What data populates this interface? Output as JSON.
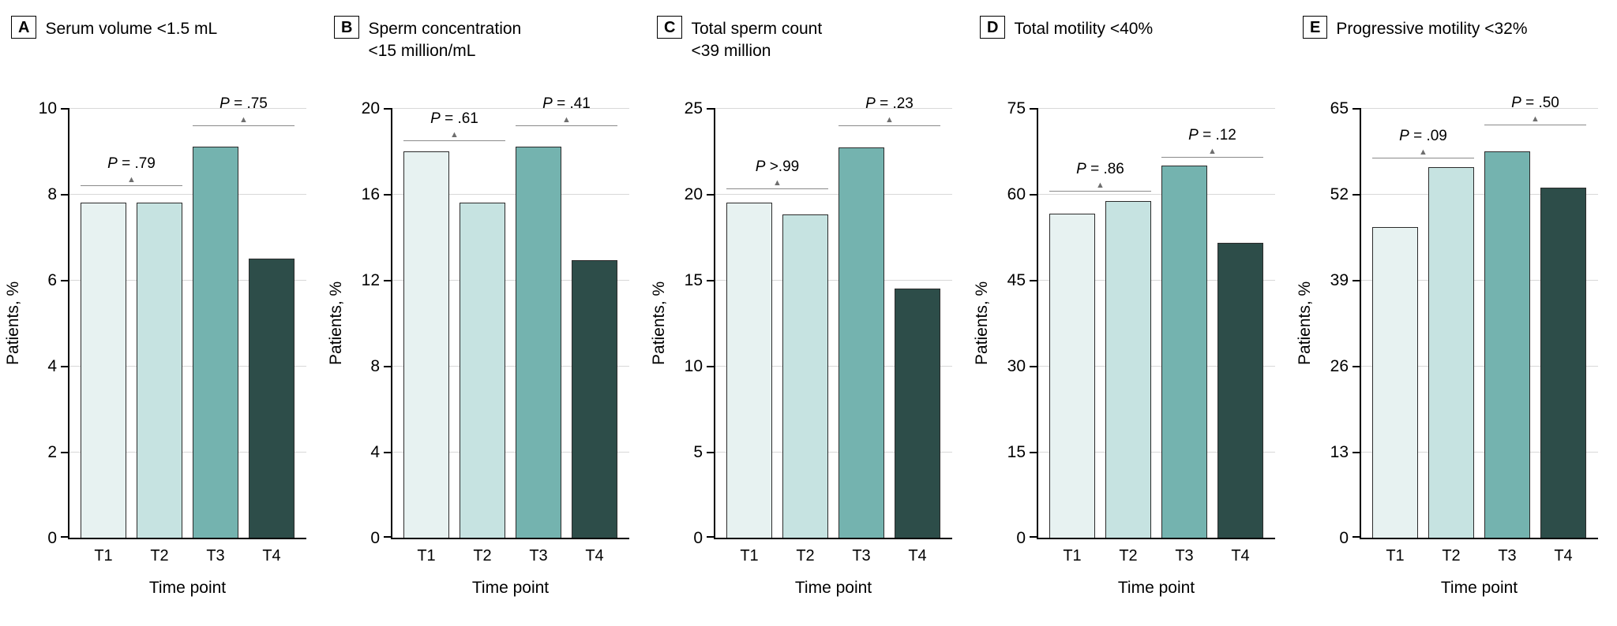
{
  "figure": {
    "y_axis_label": "Patients, %",
    "x_axis_label": "Time point",
    "categories": [
      "T1",
      "T2",
      "T3",
      "T4"
    ],
    "bar_colors": [
      "#e7f2f1",
      "#c6e3e1",
      "#74b3af",
      "#2d4d49"
    ],
    "bar_border_color": "#2b2b2b",
    "gridline_color": "#d8d8d8",
    "bracket_line_color": "#8a8a8a"
  },
  "chart_data": [
    {
      "type": "bar",
      "panel": "A",
      "title": "Serum volume <1.5 mL",
      "categories": [
        "T1",
        "T2",
        "T3",
        "T4"
      ],
      "values": [
        7.8,
        7.8,
        9.1,
        6.5
      ],
      "xlabel": "Time point",
      "ylabel": "Patients, %",
      "ylim": [
        0,
        10
      ],
      "yticks": [
        0,
        2,
        4,
        6,
        8,
        10
      ],
      "grid": true,
      "brackets": [
        {
          "pair": [
            0,
            1
          ],
          "label": "P = .79",
          "y": 8.2
        },
        {
          "pair": [
            2,
            3
          ],
          "label": "P = .75",
          "y": 9.6
        }
      ]
    },
    {
      "type": "bar",
      "panel": "B",
      "title": "Sperm concentration\n<15 million/mL",
      "categories": [
        "T1",
        "T2",
        "T3",
        "T4"
      ],
      "values": [
        18.0,
        15.6,
        18.2,
        12.9
      ],
      "xlabel": "Time point",
      "ylabel": "Patients, %",
      "ylim": [
        0,
        20
      ],
      "yticks": [
        0,
        4,
        8,
        12,
        16,
        20
      ],
      "grid": true,
      "brackets": [
        {
          "pair": [
            0,
            1
          ],
          "label": "P = .61",
          "y": 18.5
        },
        {
          "pair": [
            2,
            3
          ],
          "label": "P = .41",
          "y": 19.2
        }
      ]
    },
    {
      "type": "bar",
      "panel": "C",
      "title": "Total sperm count\n<39 million",
      "categories": [
        "T1",
        "T2",
        "T3",
        "T4"
      ],
      "values": [
        19.5,
        18.8,
        22.7,
        14.5
      ],
      "xlabel": "Time point",
      "ylabel": "Patients, %",
      "ylim": [
        0,
        25
      ],
      "yticks": [
        0,
        5,
        10,
        15,
        20,
        25
      ],
      "grid": true,
      "brackets": [
        {
          "pair": [
            0,
            1
          ],
          "label": "P >.99",
          "y": 20.3
        },
        {
          "pair": [
            2,
            3
          ],
          "label": "P = .23",
          "y": 24.0
        }
      ]
    },
    {
      "type": "bar",
      "panel": "D",
      "title": "Total motility <40%",
      "categories": [
        "T1",
        "T2",
        "T3",
        "T4"
      ],
      "values": [
        56.5,
        58.7,
        65.0,
        51.5
      ],
      "xlabel": "Time point",
      "ylabel": "Patients, %",
      "ylim": [
        0,
        75
      ],
      "yticks": [
        0,
        15,
        30,
        45,
        60,
        75
      ],
      "grid": true,
      "brackets": [
        {
          "pair": [
            0,
            1
          ],
          "label": "P = .86",
          "y": 60.5
        },
        {
          "pair": [
            2,
            3
          ],
          "label": "P = .12",
          "y": 66.5
        }
      ]
    },
    {
      "type": "bar",
      "panel": "E",
      "title": "Progressive motility <32%",
      "categories": [
        "T1",
        "T2",
        "T3",
        "T4"
      ],
      "values": [
        47.0,
        56.0,
        58.5,
        53.0
      ],
      "xlabel": "Time point",
      "ylabel": "Patients, %",
      "ylim": [
        0,
        65
      ],
      "yticks": [
        0,
        13,
        26,
        39,
        52,
        65
      ],
      "grid": true,
      "brackets": [
        {
          "pair": [
            0,
            1
          ],
          "label": "P = .09",
          "y": 57.5
        },
        {
          "pair": [
            2,
            3
          ],
          "label": "P = .50",
          "y": 62.5
        }
      ]
    }
  ]
}
